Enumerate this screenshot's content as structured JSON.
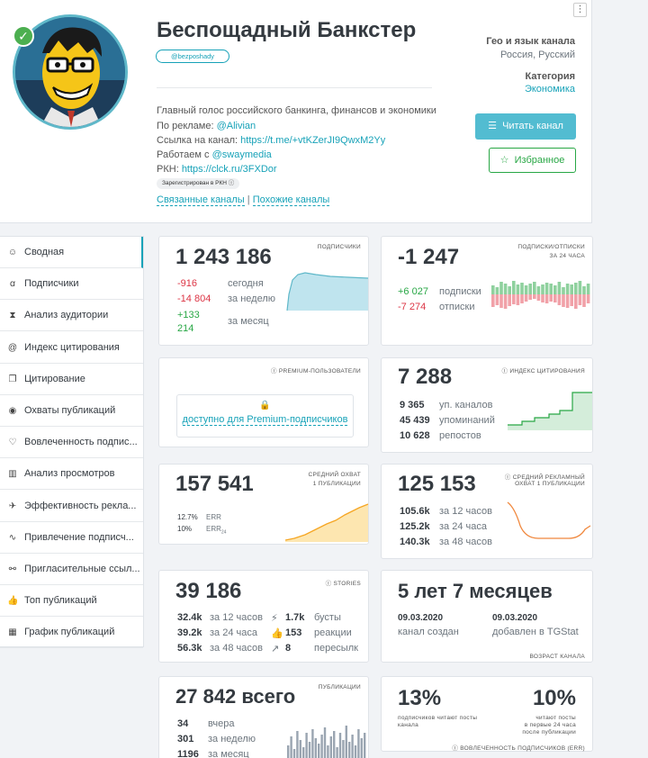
{
  "channel": {
    "title": "Беспощадный Банкстер",
    "username": "@bezposhady",
    "description": "Главный голос российского банкинга, финансов и экономики",
    "ads_label": "По рекламе:",
    "ads_value": "@Alivian",
    "link_label": "Ссылка на канал:",
    "link_value": "https://t.me/+vtKZerJI9QwxM2Yy",
    "works_label": "Работаем с",
    "works_value": "@swaymedia",
    "rkn_label": "РКН:",
    "rkn_value": "https://clck.ru/3FXDor",
    "rkn_badge": "Зарегистрирован в РКН",
    "related": "Связанные каналы",
    "similar": "Похожие каналы",
    "separator": "|",
    "geo_title": "Гео и язык канала",
    "geo_value": "Россия, Русский",
    "cat_title": "Категория",
    "cat_value": "Экономика",
    "read_button": "Читать канал",
    "fav_button": "Избранное",
    "kebab": "⋮"
  },
  "sidebar": [
    {
      "icon": "☺",
      "label": "Сводная"
    },
    {
      "icon": "ꭤ",
      "label": "Подписчики"
    },
    {
      "icon": "⧗",
      "label": "Анализ аудитории"
    },
    {
      "icon": "@",
      "label": "Индекс цитирования"
    },
    {
      "icon": "❐",
      "label": "Цитирование"
    },
    {
      "icon": "◉",
      "label": "Охваты публикаций"
    },
    {
      "icon": "♡",
      "label": "Вовлеченность подпис..."
    },
    {
      "icon": "▥",
      "label": "Анализ просмотров"
    },
    {
      "icon": "✈",
      "label": "Эффективность рекла..."
    },
    {
      "icon": "∿",
      "label": "Привлечение подписч..."
    },
    {
      "icon": "⚯",
      "label": "Пригласительные ссыл..."
    },
    {
      "icon": "👍",
      "label": "Топ публикаций"
    },
    {
      "icon": "▦",
      "label": "График публикаций"
    }
  ],
  "subscribers": {
    "tag": "подписчики",
    "total": "1 243 186",
    "rows": [
      {
        "value": "-916",
        "label": "сегодня"
      },
      {
        "value": "-14 804",
        "label": "за неделю"
      },
      {
        "value": "+133 214",
        "label": "за месяц"
      }
    ]
  },
  "subs_unsubs": {
    "tag1": "подписки/отписки",
    "tag2": "за 24 часа",
    "total": "-1 247",
    "plus": "+6 027",
    "plus_label": "подписки",
    "minus": "-7 274",
    "minus_label": "отписки"
  },
  "premium": {
    "tag": "premium-пользователи",
    "text": "доступно для Premium-подписчиков"
  },
  "citation": {
    "tag": "индекс цитирования",
    "total": "7 288",
    "rows": [
      {
        "value": "9 365",
        "label": "уп. каналов"
      },
      {
        "value": "45 439",
        "label": "упоминаний"
      },
      {
        "value": "10 628",
        "label": "репостов"
      }
    ]
  },
  "avg_reach": {
    "tag1": "средний охват",
    "tag2": "1 публикации",
    "total": "157 541",
    "err": "12.7%",
    "err_label": "ERR",
    "err24": "10%",
    "err24_label": "ERR",
    "err24_sub": "24"
  },
  "ad_reach": {
    "tag1": "средний рекламный",
    "tag2": "охват 1 публикации",
    "total": "125 153",
    "rows": [
      {
        "value": "105.6k",
        "label": "за 12 часов"
      },
      {
        "value": "125.2k",
        "label": "за 24 часа"
      },
      {
        "value": "140.3k",
        "label": "за 48 часов"
      }
    ]
  },
  "stories": {
    "tag": "stories",
    "total": "39 186",
    "rows": [
      {
        "value": "32.4k",
        "label": "за 12 часов"
      },
      {
        "value": "39.2k",
        "label": "за 24 часа"
      },
      {
        "value": "56.3k",
        "label": "за 48 часов"
      }
    ],
    "right": [
      {
        "icon": "⚡",
        "value": "1.7k",
        "label": "бусты"
      },
      {
        "icon": "👍",
        "value": "153",
        "label": "реакции"
      },
      {
        "icon": "↗",
        "value": "8",
        "label": "пересылк"
      }
    ]
  },
  "age": {
    "title": "5 лет 7 месяцев",
    "date1": "09.03.2020",
    "label1": "канал создан",
    "date2": "09.03.2020",
    "label2": "добавлен в TGStat",
    "tag": "возраст канала"
  },
  "publications": {
    "tag": "публикации",
    "total": "27 842 всего",
    "rows": [
      {
        "value": "34",
        "label": "вчера"
      },
      {
        "value": "301",
        "label": "за неделю"
      },
      {
        "value": "1196",
        "label": "за месяц"
      }
    ],
    "bars": [
      14,
      24,
      10,
      30,
      20,
      12,
      28,
      18,
      32,
      22,
      16,
      26,
      34,
      14,
      24,
      30,
      12,
      28,
      20,
      36,
      18,
      26,
      14,
      32,
      22,
      28
    ]
  },
  "engagement": {
    "pct1": "13%",
    "label1a": "подписчиков читают посты",
    "label1b": "канала",
    "pct2": "10%",
    "label2a": "читают посты",
    "label2b": "в первые 24 часа",
    "label2c": "после публикации",
    "tag": "вовлеченность подписчиков (ERR)"
  },
  "colors": {
    "accent": "#17a2b8",
    "green": "#28a745",
    "red": "#dc3545",
    "orange": "#f5a623"
  },
  "subs_bars": {
    "pos": [
      10,
      8,
      14,
      12,
      9,
      15,
      11,
      13,
      10,
      12,
      14,
      9,
      11,
      13,
      12,
      10,
      14,
      8,
      12,
      11,
      13,
      15,
      9,
      12
    ],
    "neg": [
      14,
      12,
      15,
      16,
      13,
      11,
      12,
      10,
      8,
      6,
      5,
      7,
      9,
      10,
      8,
      9,
      12,
      14,
      15,
      13,
      16,
      12,
      14,
      10
    ]
  }
}
